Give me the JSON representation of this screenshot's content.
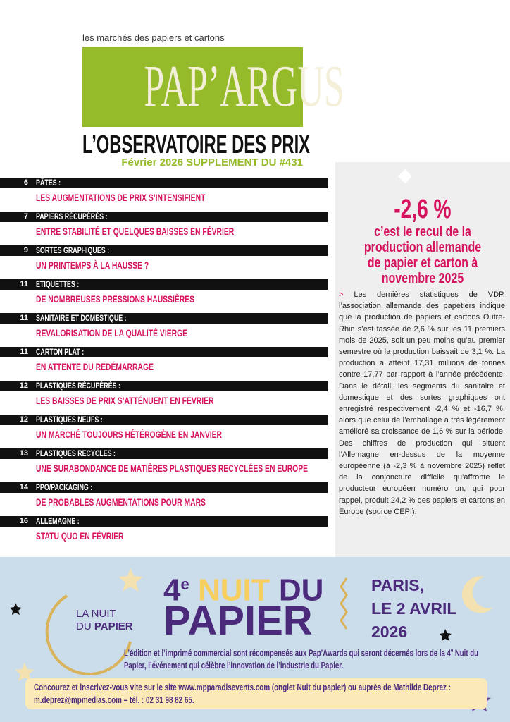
{
  "header": {
    "tagline": "les marchés des papiers et cartons",
    "logo": "PAP’ARGUS",
    "title": "L’OBSERVATOIRE DES PRIX",
    "issue": "Février 2026 SUPPLEMENT DU #431"
  },
  "toc": [
    {
      "page": "6",
      "section": "PÂTES :",
      "headline": "LES AUGMENTATIONS DE PRIX S’INTENSIFIENT"
    },
    {
      "page": "7",
      "section": "PAPIERS RÉCUPÉRÉS :",
      "headline": "ENTRE STABILITÉ ET QUELQUES BAISSES EN FÉVRIER"
    },
    {
      "page": "9",
      "section": "SORTES GRAPHIQUES :",
      "headline": "UN PRINTEMPS À LA HAUSSE ?"
    },
    {
      "page": "11",
      "section": "ETIQUETTES :",
      "headline": "DE NOMBREUSES PRESSIONS HAUSSIÈRES"
    },
    {
      "page": "11",
      "section": "SANITAIRE ET DOMESTIQUE :",
      "headline": "REVALORISATION DE LA QUALITÉ VIERGE"
    },
    {
      "page": "11",
      "section": "CARTON PLAT :",
      "headline": "EN ATTENTE DU REDÉMARRAGE"
    },
    {
      "page": "12",
      "section": "PLASTIQUES RÉCUPÉRÉS :",
      "headline": "LES BAISSES DE PRIX S’ATTÉNUENT EN FÉVRIER"
    },
    {
      "page": "12",
      "section": "PLASTIQUES NEUFS :",
      "headline": "UN MARCHÉ TOUJOURS HÉTÉROGÈNE EN JANVIER"
    },
    {
      "page": "13",
      "section": "PLASTIQUES RECYCLES :",
      "headline": "UNE SURABONDANCE DE MATIÈRES PLASTIQUES RECYCLÉES EN EUROPE"
    },
    {
      "page": "14",
      "section": "PPO/PACKAGING :",
      "headline": "DE PROBABLES AUGMENTATIONS POUR MARS"
    },
    {
      "page": "16",
      "section": "ALLEMAGNE :",
      "headline": "STATU QUO EN FÉVRIER"
    }
  ],
  "sidebar": {
    "figure": "-2,6 %",
    "caption": "c’est le recul de la production allemande de papier et carton à novembre 2025",
    "marker": ">",
    "body": "Les dernières statistiques de VDP, l’association allemande des papetiers indique que la production de papiers et cartons Outre-Rhin s’est tassée de 2,6 % sur les 11 premiers mois de 2025, soit un peu moins qu’au premier semestre où la production baissait de 3,1 %. La production a atteint 17,31 millions de tonnes contre 17,77 par rapport à l’année précédente. Dans le détail, les segments du sanitaire et domestique et des sortes graphiques ont enregistré respectivement -2,4 % et -16,7 %, alors que celui de l’emballage a très légèrement amélioré sa croissance de 1,6 % sur la période. Des chiffres de production qui situent l’Allemagne en-dessus de la moyenne européenne (à -2,3 % à novembre 2025) reflet de la conjoncture difficile qu’affronte le producteur européen numéro un, qui pour rappel, produit 24,2 % des papiers et cartons en Europe (source CEPI)."
  },
  "banner": {
    "logo_line1": "LA NUIT",
    "logo_du": "DU",
    "logo_papier": "PAPIER",
    "edition": "4",
    "edition_sup": "e",
    "headline_nuit": "NUIT",
    "headline_du": "DU",
    "headline_papier": "PAPIER",
    "city": "PARIS,",
    "date": "LE 2 AVRIL",
    "year": "2026",
    "text_a": "L’édition et l’imprimé commercial sont récompensés aux Pap’Awards qui seront décernés lors de la 4",
    "text_sup": "e",
    "text_b": " Nuit du Papier, l’événement qui célèbre l’innovation de l’industrie du Papier.",
    "contact": "Concourez et inscrivez-vous vite sur le site www.mpparadisevents.com (onglet Nuit du papier) ou auprès de Mathilde Deprez : m.deprez@mpmedias.com – tél. : 02 31 98 82 65."
  }
}
